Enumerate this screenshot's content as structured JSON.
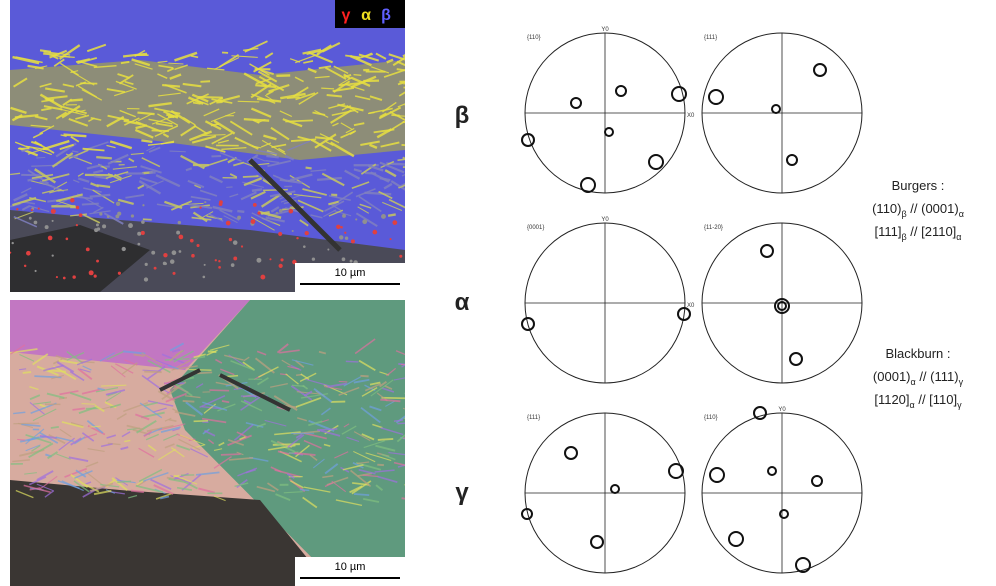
{
  "micrographs": [
    {
      "legend": [
        {
          "text": "γ",
          "color": "#ff2020"
        },
        {
          "text": "α",
          "color": "#f0e020"
        },
        {
          "text": "β",
          "color": "#6060ff"
        }
      ],
      "scale": "10 µm"
    },
    {
      "scale": "10 µm"
    }
  ],
  "rows": [
    {
      "label": "β"
    },
    {
      "label": "α"
    },
    {
      "label": "γ"
    }
  ],
  "poles": [
    {
      "label": "{110}",
      "y_axis": "Y0",
      "x_axis": "X0"
    },
    {
      "label": "{111}"
    },
    {
      "label": "{0001}",
      "y_axis": "Y0",
      "x_axis": "X0"
    },
    {
      "label": "{11-20}"
    },
    {
      "label": "{111}"
    },
    {
      "label": "{110}",
      "y_axis": "Y0"
    }
  ],
  "burgers": {
    "title": "Burgers :",
    "lines": [
      [
        {
          "text": "(110)",
          "sub": "β"
        },
        {
          "text": " // (0001)",
          "sub": "α"
        }
      ],
      [
        {
          "text": "[111]",
          "sub": "β"
        },
        {
          "text": " // [2110]",
          "sub": "α"
        }
      ]
    ]
  },
  "blackburn": {
    "title": "Blackburn :",
    "lines": [
      [
        {
          "text": "(0001)",
          "sub": "α"
        },
        {
          "text": " // (111)",
          "sub": "γ"
        }
      ],
      [
        {
          "text": "[1120]",
          "sub": "α"
        },
        {
          "text": " // [110]",
          "sub": "γ"
        }
      ]
    ]
  }
}
